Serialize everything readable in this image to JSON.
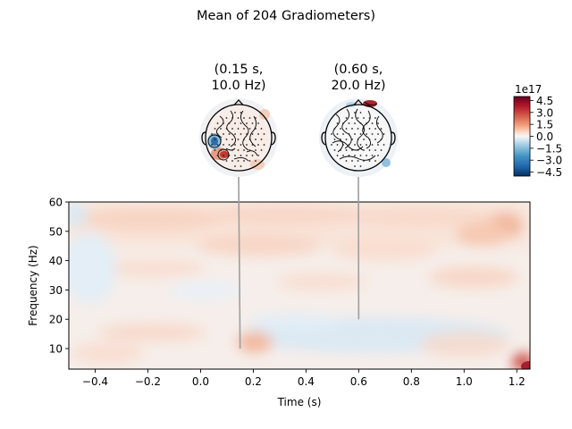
{
  "chart_data": {
    "type": "heatmap",
    "title": "Mean of 204 Gradiometers)",
    "xlabel": "Time (s)",
    "ylabel": "Frequency (Hz)",
    "xlim": [
      -0.5,
      1.25
    ],
    "ylim": [
      3,
      60
    ],
    "x_ticks": [
      -0.4,
      -0.2,
      0.0,
      0.2,
      0.4,
      0.6,
      0.8,
      1.0,
      1.2
    ],
    "x_tick_labels": [
      "−0.4",
      "−0.2",
      "0.0",
      "0.2",
      "0.4",
      "0.6",
      "0.8",
      "1.0",
      "1.2"
    ],
    "y_ticks": [
      10,
      20,
      30,
      40,
      50,
      60
    ],
    "y_tick_labels": [
      "10",
      "20",
      "30",
      "40",
      "50",
      "60"
    ],
    "colormap": "RdBu_r",
    "colorbar": {
      "exponent_label": "1e17",
      "clim": [
        -5.0,
        5.0
      ],
      "ticks": [
        4.5,
        3.0,
        1.5,
        0.0,
        -1.5,
        -3.0,
        -4.5
      ],
      "tick_labels": [
        "4.5",
        "3.0",
        "1.5",
        "0.0",
        "−1.5",
        "−3.0",
        "−4.5"
      ]
    },
    "topomaps": [
      {
        "time": 0.15,
        "freq": 10.0,
        "title_line1": "(0.15 s,",
        "title_line2": "10.0 Hz)"
      },
      {
        "time": 0.6,
        "freq": 20.0,
        "title_line1": "(0.60 s,",
        "title_line2": "20.0 Hz)"
      }
    ],
    "grid": false,
    "legend": "none"
  }
}
